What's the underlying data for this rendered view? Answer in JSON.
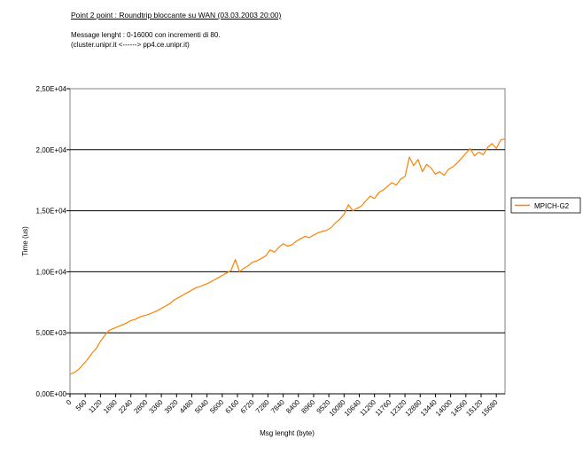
{
  "header": {
    "title": "Point 2 point : Roundtrip bloccante su WAN (03.03.2003 20:00)",
    "line1": "Message lenght :  0-16000 con incrementi di 80.",
    "line2": "(cluster.unipr.it    <------>  pp4.ce.unipr.it)"
  },
  "chart_data": {
    "type": "line",
    "xlabel": "Msg lenght (byte)",
    "ylabel": "Time (us)",
    "ylim": [
      0,
      25000
    ],
    "xlim": [
      0,
      16000
    ],
    "y_ticks": [
      "0,00E+00",
      "5,00E+03",
      "1,00E+04",
      "1,50E+04",
      "2,00E+04",
      "2,50E+04"
    ],
    "y_tick_values": [
      0,
      5000,
      10000,
      15000,
      20000,
      25000
    ],
    "x_ticks": [
      "0",
      "560",
      "1120",
      "1680",
      "2240",
      "2800",
      "3360",
      "3920",
      "4480",
      "5040",
      "5600",
      "6160",
      "6720",
      "7280",
      "7840",
      "8400",
      "8960",
      "9520",
      "10080",
      "10640",
      "11200",
      "11760",
      "12320",
      "12880",
      "13440",
      "14000",
      "14560",
      "15120",
      "15680"
    ],
    "grid": "horizontal",
    "legend_position": "right",
    "line_color": "#FF8000",
    "series": [
      {
        "name": "MPICH-G2",
        "x": [
          0,
          160,
          320,
          480,
          640,
          800,
          960,
          1120,
          1280,
          1440,
          1600,
          1760,
          1920,
          2080,
          2240,
          2400,
          2560,
          2720,
          2880,
          3040,
          3200,
          3360,
          3520,
          3680,
          3840,
          4000,
          4160,
          4320,
          4480,
          4640,
          4800,
          4960,
          5120,
          5280,
          5440,
          5600,
          5760,
          5920,
          6080,
          6240,
          6400,
          6560,
          6720,
          6880,
          7040,
          7200,
          7360,
          7520,
          7680,
          7840,
          8000,
          8160,
          8320,
          8480,
          8640,
          8800,
          8960,
          9120,
          9280,
          9440,
          9600,
          9760,
          9920,
          10080,
          10240,
          10400,
          10560,
          10720,
          10880,
          11040,
          11200,
          11360,
          11520,
          11680,
          11840,
          12000,
          12160,
          12320,
          12480,
          12640,
          12800,
          12960,
          13120,
          13280,
          13440,
          13600,
          13760,
          13920,
          14080,
          14240,
          14400,
          14560,
          14720,
          14880,
          15040,
          15200,
          15360,
          15520,
          15680,
          15840,
          16000
        ],
        "values": [
          1600,
          1750,
          2000,
          2400,
          2800,
          3300,
          3700,
          4300,
          4800,
          5200,
          5350,
          5500,
          5650,
          5800,
          6000,
          6100,
          6300,
          6400,
          6500,
          6650,
          6800,
          7000,
          7200,
          7400,
          7700,
          7900,
          8100,
          8300,
          8500,
          8700,
          8800,
          8950,
          9100,
          9300,
          9500,
          9700,
          9900,
          10100,
          11000,
          10000,
          10300,
          10500,
          10800,
          10900,
          11100,
          11300,
          11800,
          11600,
          12000,
          12300,
          12100,
          12200,
          12500,
          12700,
          12900,
          12800,
          13000,
          13200,
          13300,
          13400,
          13600,
          14000,
          14300,
          14700,
          15500,
          15000,
          15200,
          15400,
          15800,
          16200,
          16000,
          16500,
          16700,
          17000,
          17300,
          17100,
          17600,
          17800,
          19400,
          18700,
          19200,
          18200,
          18800,
          18500,
          18000,
          18200,
          17900,
          18400,
          18600,
          18900,
          19300,
          19700,
          20100,
          19500,
          19800,
          19600,
          20200,
          20500,
          20100,
          20800,
          20900
        ]
      }
    ]
  }
}
